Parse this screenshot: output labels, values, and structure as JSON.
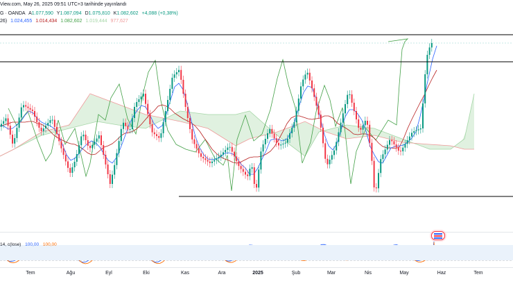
{
  "header": {
    "line1": "View.com, May 26, 2025 09:51 UTC+3 tarihinde yayınlandı",
    "symbol": "G · OANDA",
    "a_label": "A",
    "a_value": "1.077,590",
    "y_label": "Y",
    "y_value": "1.087,094",
    "d_label": "D",
    "d_value": "1.075,810",
    "k_label": "K",
    "k_value": "1.082,602",
    "change": "+4,088 (+0,38%)",
    "ich_prefix": "26)",
    "ich_v1": "1.024,455",
    "ich_v2": "1.014,434",
    "ich_v3": "1.082,602",
    "ich_v4": "1.019,444",
    "ich_v5": "977,627"
  },
  "stoch": {
    "label": "14, c(lose)",
    "k_value": "100,00",
    "d_value": "100,00"
  },
  "time_axis": [
    "Tem",
    "Ağu",
    "Eyl",
    "Eki",
    "Kas",
    "Ara",
    "2025",
    "Şub",
    "Mar",
    "Nis",
    "May",
    "Haz",
    "Tem"
  ],
  "colors": {
    "up": "#089981",
    "down": "#f23645",
    "tenkan": "#2962ff",
    "kijun": "#b71c1c",
    "lagging": "#43a047",
    "cloud_bull": "#a5d6a7",
    "cloud_bear": "#ef9a9a",
    "stoch_k": "#2962ff",
    "stoch_d": "#ff6d00",
    "level_line": "#000000"
  }
}
